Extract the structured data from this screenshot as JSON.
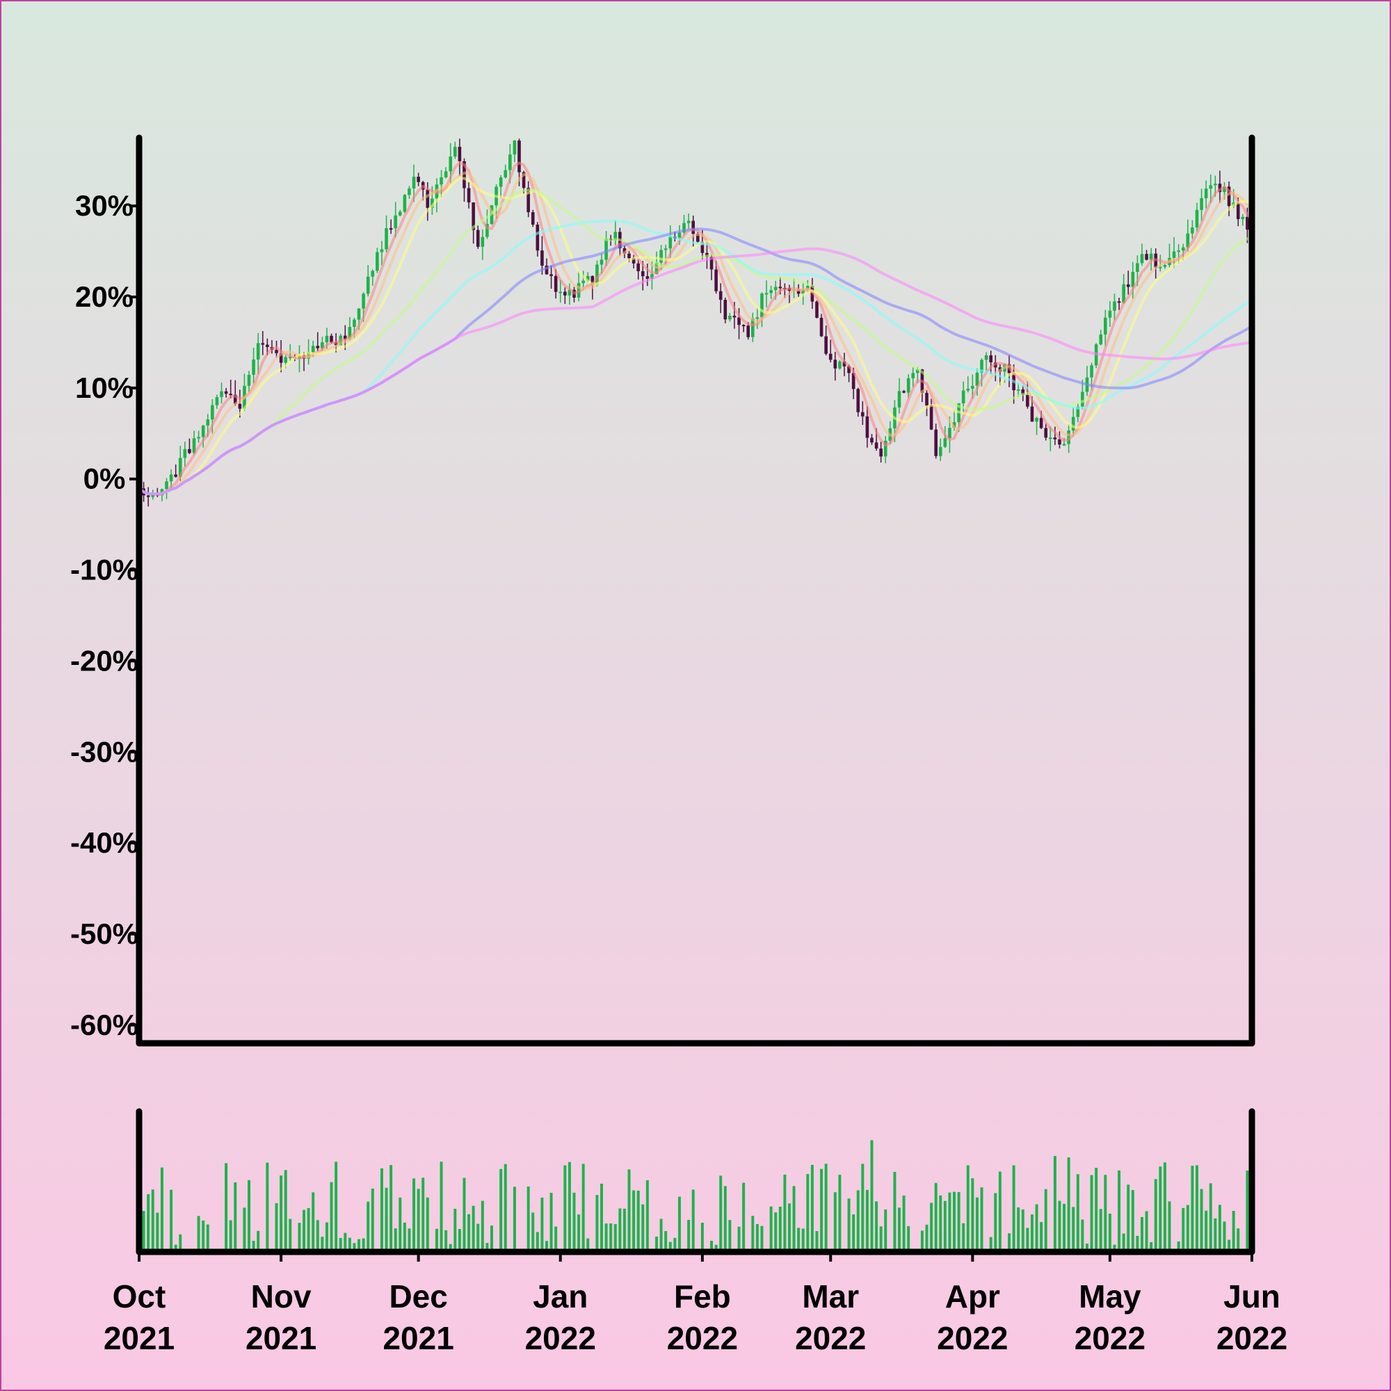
{
  "chart_data": {
    "type": "candlestick",
    "title": "",
    "xlabel": "",
    "ylabel": "",
    "y_unit": "%",
    "ylim": [
      -62,
      37.5
    ],
    "yticks": [
      30,
      20,
      10,
      0,
      -10,
      -20,
      -30,
      -40,
      -50,
      -60
    ],
    "ytick_labels": [
      "30%",
      "20%",
      "10%",
      "0%",
      "-10%",
      "-20%",
      "-30%",
      "-40%",
      "-50%",
      "-60%"
    ],
    "xlim": [
      "2021-10-01",
      "2022-06-01"
    ],
    "xticks": [
      {
        "date": "2021-10-01",
        "month": "Oct",
        "year": "2021"
      },
      {
        "date": "2021-11-01",
        "month": "Nov",
        "year": "2021"
      },
      {
        "date": "2021-12-01",
        "month": "Dec",
        "year": "2021"
      },
      {
        "date": "2022-01-01",
        "month": "Jan",
        "year": "2022"
      },
      {
        "date": "2022-02-01",
        "month": "Feb",
        "year": "2022"
      },
      {
        "date": "2022-03-01",
        "month": "Mar",
        "year": "2022"
      },
      {
        "date": "2022-04-01",
        "month": "Apr",
        "year": "2022"
      },
      {
        "date": "2022-05-01",
        "month": "May",
        "year": "2022"
      },
      {
        "date": "2022-06-01",
        "month": "Jun",
        "year": "2022"
      }
    ],
    "price_keypoints": [
      [
        "2021-10-01",
        -1
      ],
      [
        "2021-10-05",
        -2
      ],
      [
        "2021-10-09",
        1
      ],
      [
        "2021-10-14",
        5
      ],
      [
        "2021-10-19",
        10
      ],
      [
        "2021-10-23",
        8
      ],
      [
        "2021-10-27",
        15
      ],
      [
        "2021-11-02",
        13
      ],
      [
        "2021-11-06",
        14
      ],
      [
        "2021-11-10",
        15
      ],
      [
        "2021-11-15",
        15
      ],
      [
        "2021-11-20",
        22
      ],
      [
        "2021-11-25",
        28
      ],
      [
        "2021-11-30",
        33
      ],
      [
        "2021-12-03",
        30
      ],
      [
        "2021-12-09",
        36
      ],
      [
        "2021-12-12",
        31
      ],
      [
        "2021-12-14",
        25
      ],
      [
        "2021-12-18",
        32
      ],
      [
        "2021-12-22",
        37
      ],
      [
        "2021-12-25",
        29
      ],
      [
        "2021-12-29",
        22
      ],
      [
        "2022-01-03",
        20
      ],
      [
        "2022-01-08",
        22
      ],
      [
        "2022-01-12",
        27
      ],
      [
        "2022-01-16",
        25
      ],
      [
        "2022-01-20",
        22
      ],
      [
        "2022-01-25",
        26
      ],
      [
        "2022-01-29",
        28
      ],
      [
        "2022-02-02",
        24
      ],
      [
        "2022-02-06",
        18
      ],
      [
        "2022-02-11",
        16
      ],
      [
        "2022-02-15",
        21
      ],
      [
        "2022-02-20",
        20
      ],
      [
        "2022-02-24",
        21
      ],
      [
        "2022-02-28",
        14
      ],
      [
        "2022-03-05",
        11
      ],
      [
        "2022-03-09",
        5
      ],
      [
        "2022-03-12",
        3
      ],
      [
        "2022-03-16",
        9
      ],
      [
        "2022-03-20",
        12
      ],
      [
        "2022-03-24",
        3
      ],
      [
        "2022-03-29",
        8
      ],
      [
        "2022-04-03",
        13
      ],
      [
        "2022-04-08",
        12
      ],
      [
        "2022-04-12",
        9
      ],
      [
        "2022-04-17",
        4
      ],
      [
        "2022-04-21",
        4
      ],
      [
        "2022-04-25",
        9
      ],
      [
        "2022-04-29",
        16
      ],
      [
        "2022-05-03",
        20
      ],
      [
        "2022-05-08",
        24
      ],
      [
        "2022-05-13",
        24
      ],
      [
        "2022-05-17",
        25
      ],
      [
        "2022-05-21",
        31
      ],
      [
        "2022-05-25",
        32
      ],
      [
        "2022-05-28",
        30
      ],
      [
        "2022-06-01",
        27
      ]
    ],
    "moving_averages": [
      {
        "window": 5,
        "color": "#ff8080"
      },
      {
        "window": 8,
        "color": "#ffc080"
      },
      {
        "window": 12,
        "color": "#ffff80"
      },
      {
        "window": 30,
        "color": "#c0ff80"
      },
      {
        "window": 50,
        "color": "#80ffff"
      },
      {
        "window": 70,
        "color": "#8080ff"
      },
      {
        "window": 100,
        "color": "#ff80ff"
      }
    ],
    "volume_panel": {
      "axis_labels": "none"
    },
    "up_color": "#1db34a",
    "down_color": "#4d1040",
    "background_gradient": [
      "#d8e8de",
      "#fac8e4"
    ],
    "frame_color": "#c040a0"
  }
}
